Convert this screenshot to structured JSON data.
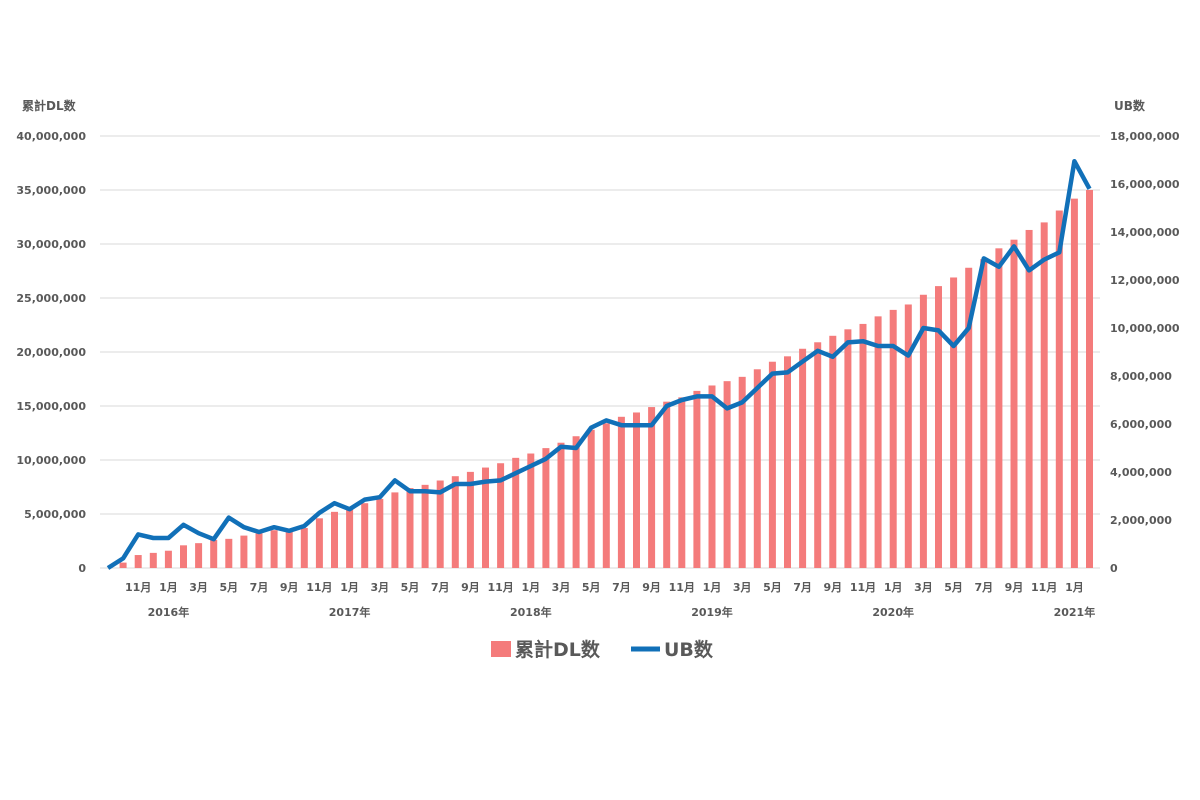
{
  "chart_data": {
    "type": "bar+line",
    "left_axis_title": "累計DL数",
    "right_axis_title": "UB数",
    "left_ylim": [
      0,
      40000000
    ],
    "right_ylim": [
      0,
      18000000
    ],
    "left_ticks": [
      "0",
      "5,000,000",
      "10,000,000",
      "15,000,000",
      "20,000,000",
      "25,000,000",
      "30,000,000",
      "35,000,000",
      "40,000,000"
    ],
    "right_ticks": [
      "0",
      "2,000,000",
      "4,000,000",
      "6,000,000",
      "8,000,000",
      "10,000,000",
      "12,000,000",
      "14,000,000",
      "16,000,000",
      "18,000,000"
    ],
    "x_start": "2015-09",
    "x_tick_labels": [
      "11月",
      "1月",
      "3月",
      "5月",
      "7月",
      "9月",
      "11月",
      "1月",
      "3月",
      "5月",
      "7月",
      "9月",
      "11月",
      "1月",
      "3月",
      "5月",
      "7月",
      "9月",
      "11月",
      "1月",
      "3月",
      "5月",
      "7月",
      "9月",
      "11月",
      "1月",
      "3月",
      "5月",
      "7月",
      "9月",
      "11月",
      "1月"
    ],
    "year_labels": [
      "2016年",
      "2017年",
      "2018年",
      "2019年",
      "2020年",
      "2021年"
    ],
    "grid": true,
    "legend_position": "bottom",
    "colors": {
      "bar": "#F47B7B",
      "line": "#1170B8",
      "grid": "#D9D9D9"
    },
    "series": [
      {
        "name": "累計DL数",
        "type": "bar",
        "axis": "left",
        "values": [
          0,
          500000,
          1200000,
          1400000,
          1600000,
          2100000,
          2300000,
          2600000,
          2700000,
          3000000,
          3200000,
          3500000,
          3400000,
          3700000,
          4600000,
          5200000,
          5500000,
          6000000,
          6400000,
          7000000,
          7400000,
          7700000,
          8100000,
          8500000,
          8900000,
          9300000,
          9700000,
          10200000,
          10600000,
          11100000,
          11600000,
          12200000,
          12800000,
          13400000,
          14000000,
          14400000,
          14900000,
          15400000,
          15800000,
          16400000,
          16900000,
          17300000,
          17700000,
          18400000,
          19100000,
          19600000,
          20300000,
          20900000,
          21500000,
          22100000,
          22600000,
          23300000,
          23900000,
          24400000,
          25300000,
          26100000,
          26900000,
          27800000,
          28600000,
          29600000,
          30400000,
          31300000,
          32000000,
          33100000,
          34200000,
          35000000
        ]
      },
      {
        "name": "UB数",
        "type": "line",
        "axis": "right",
        "values": [
          0,
          400000,
          1400000,
          1250000,
          1250000,
          1800000,
          1450000,
          1200000,
          2100000,
          1700000,
          1500000,
          1700000,
          1550000,
          1750000,
          2300000,
          2700000,
          2450000,
          2850000,
          2950000,
          3650000,
          3200000,
          3200000,
          3150000,
          3500000,
          3500000,
          3600000,
          3650000,
          3950000,
          4250000,
          4550000,
          5050000,
          5000000,
          5850000,
          6150000,
          5950000,
          5950000,
          5950000,
          6750000,
          7000000,
          7150000,
          7150000,
          6650000,
          6900000,
          7500000,
          8100000,
          8150000,
          8600000,
          9050000,
          8800000,
          9400000,
          9450000,
          9250000,
          9250000,
          8850000,
          10000000,
          9900000,
          9250000,
          10000000,
          12900000,
          12550000,
          13400000,
          12400000,
          12850000,
          13150000,
          16950000,
          15800000
        ]
      }
    ]
  }
}
